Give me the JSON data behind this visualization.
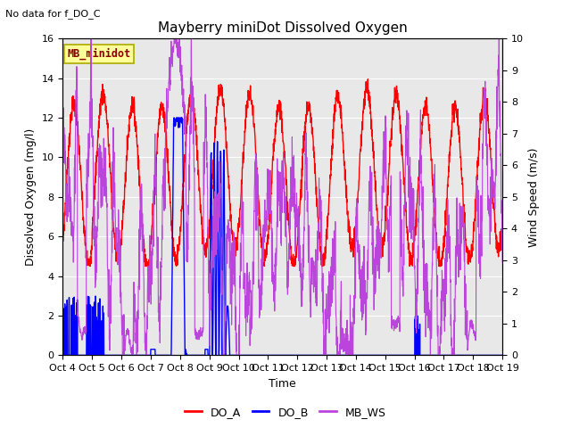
{
  "title": "Mayberry miniDot Dissolved Oxygen",
  "subtitle": "No data for f_DO_C",
  "xlabel": "Time",
  "ylabel_left": "Dissolved Oxygen (mg/l)",
  "ylabel_right": "Wind Speed (m/s)",
  "ylim_left": [
    0,
    16
  ],
  "ylim_right": [
    0.0,
    10.0
  ],
  "yticks_left": [
    0,
    2,
    4,
    6,
    8,
    10,
    12,
    14,
    16
  ],
  "yticks_right": [
    0.0,
    1.0,
    2.0,
    3.0,
    4.0,
    5.0,
    6.0,
    7.0,
    8.0,
    9.0,
    10.0
  ],
  "xtick_labels": [
    "Oct 4",
    "Oct 5",
    "Oct 6",
    "Oct 7",
    "Oct 8",
    "Oct 9",
    "Oct 10",
    "Oct 11",
    "Oct 12",
    "Oct 13",
    "Oct 14",
    "Oct 15",
    "Oct 16",
    "Oct 17",
    "Oct 18",
    "Oct 19"
  ],
  "color_DO_A": "#ff0000",
  "color_DO_B": "#0000ff",
  "color_MB_WS": "#bb44dd",
  "legend_label_A": "DO_A",
  "legend_label_B": "DO_B",
  "legend_label_WS": "MB_WS",
  "legend_box_label": "MB_minidot",
  "legend_box_facecolor": "#ffff99",
  "legend_box_edgecolor": "#aaaa00",
  "plot_bg_color": "#e8e8e8",
  "linewidth_DO_A": 1.0,
  "linewidth_DO_B": 1.0,
  "linewidth_MB_WS": 0.8,
  "title_fontsize": 11,
  "axis_fontsize": 9,
  "tick_fontsize": 8
}
